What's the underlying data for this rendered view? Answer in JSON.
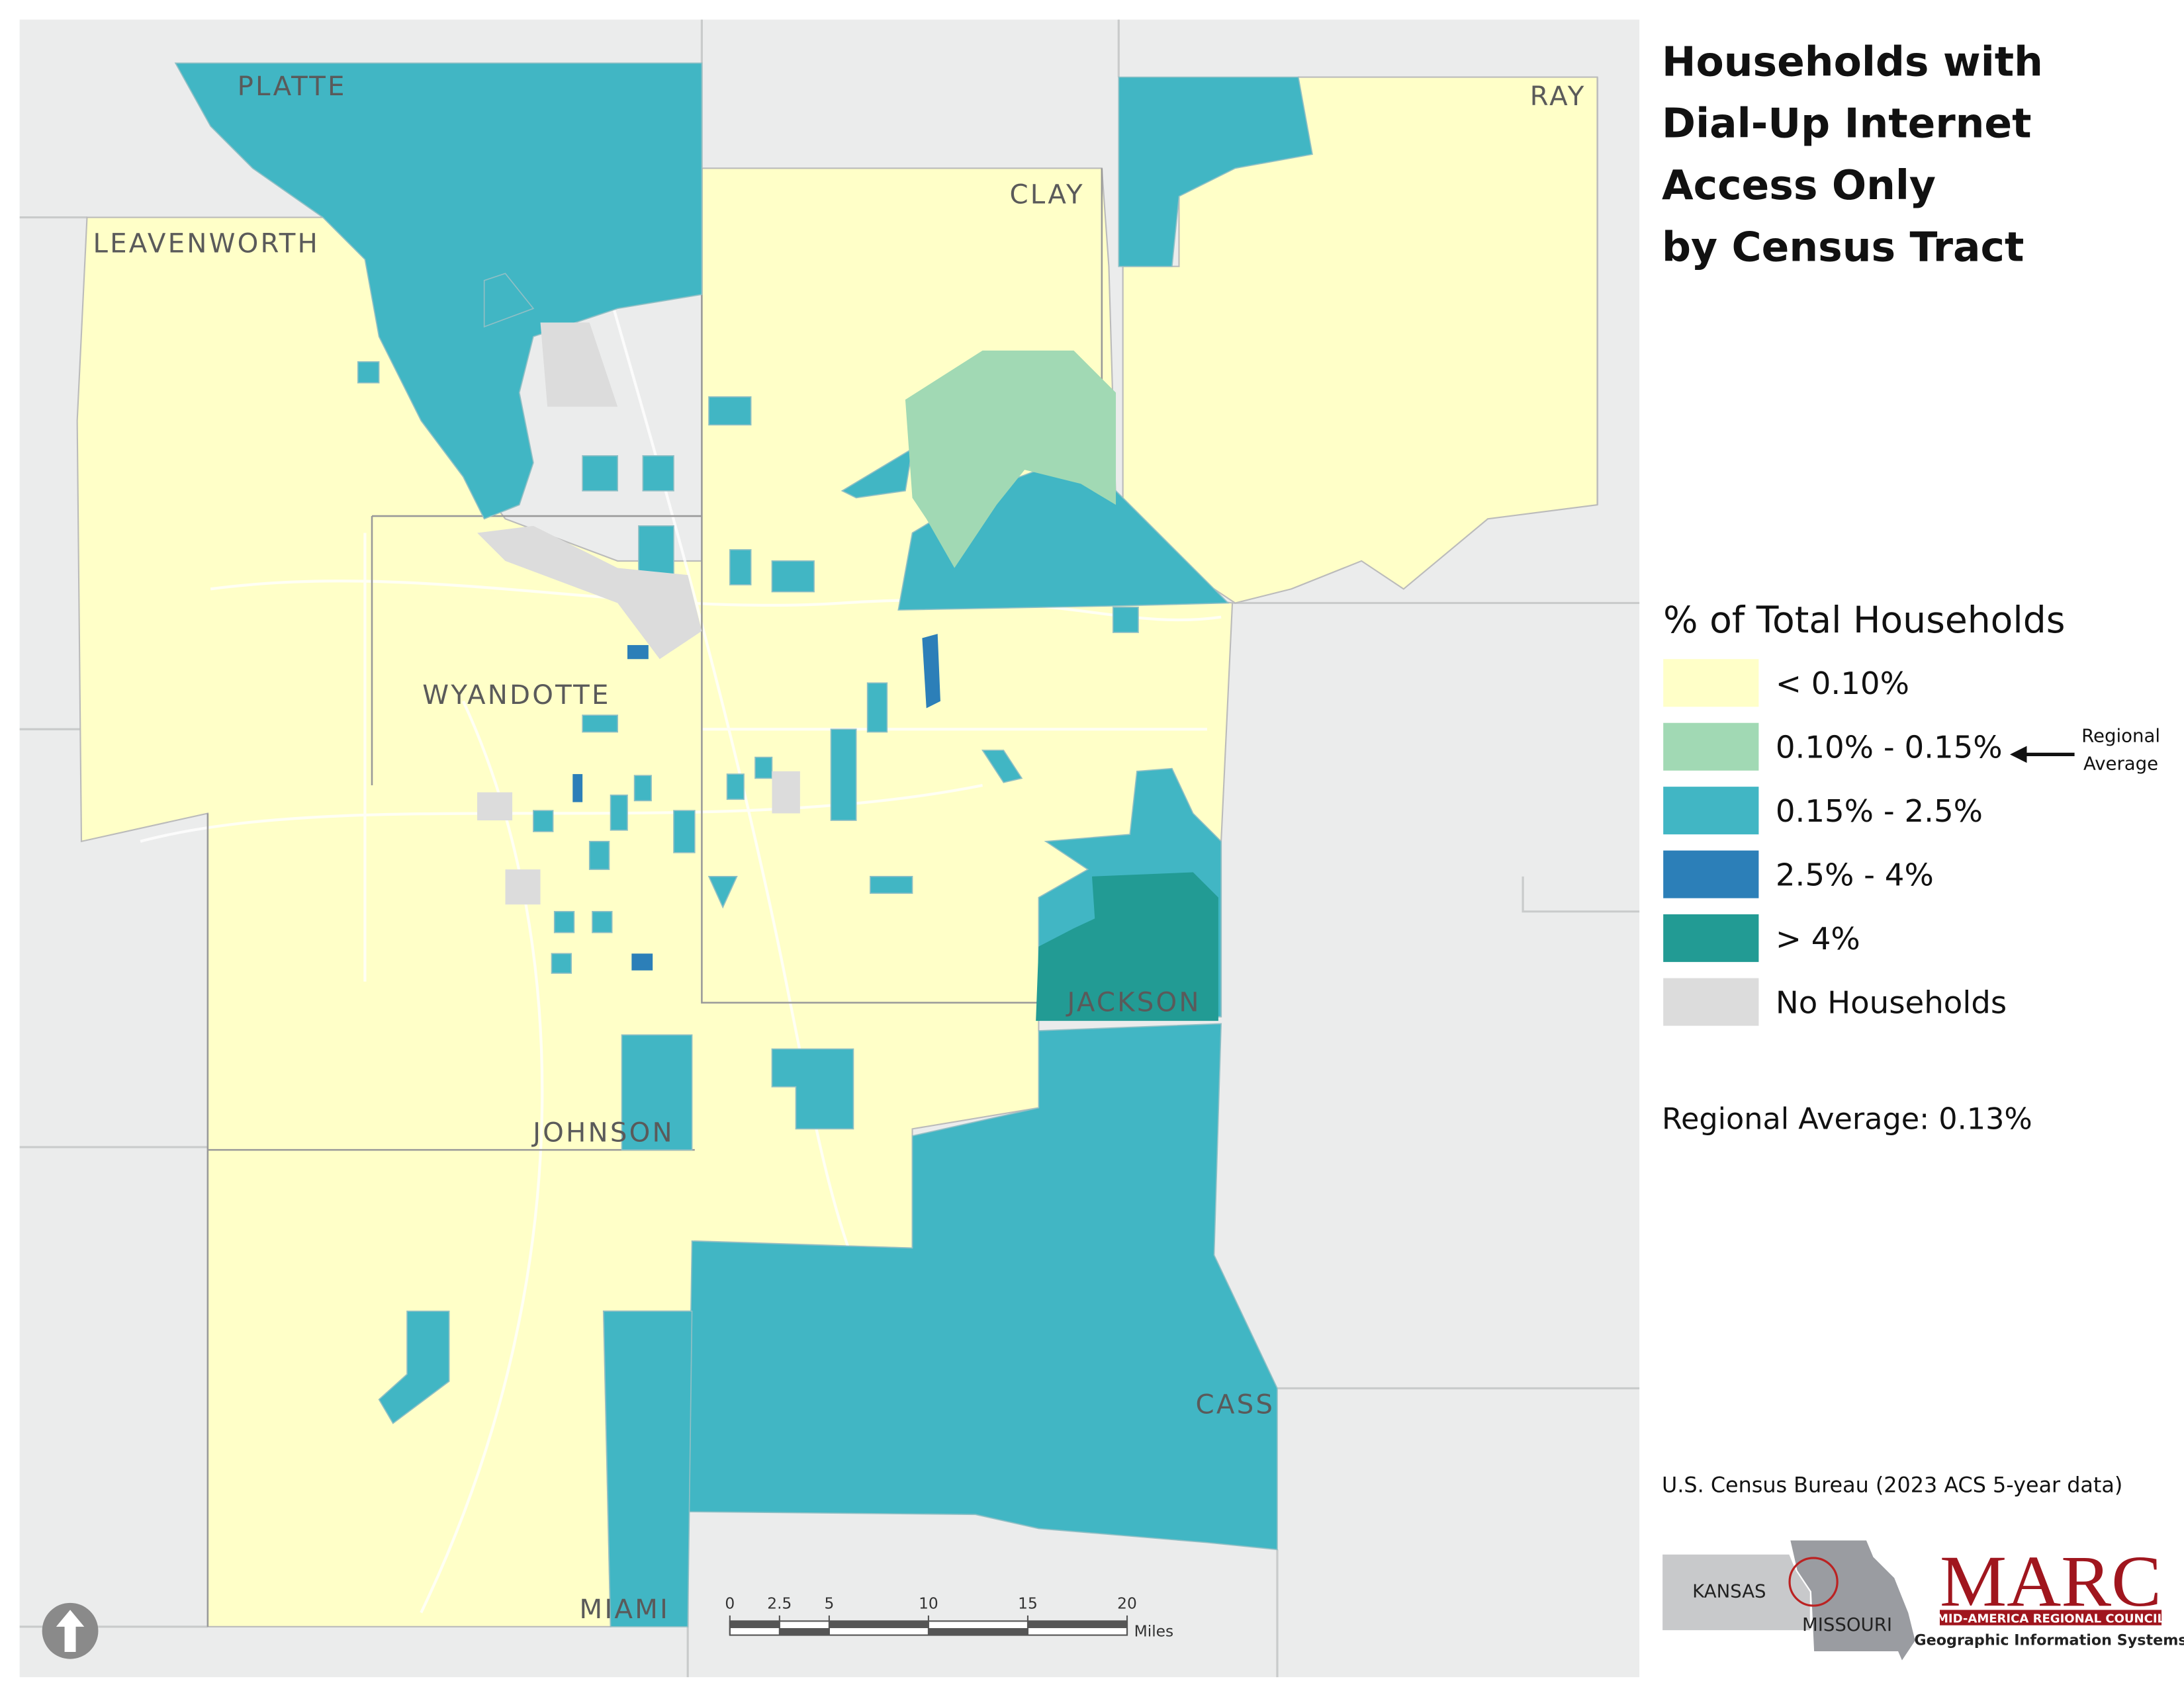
{
  "title_lines": [
    "Households with",
    "Dial-Up Internet",
    "Access Only",
    "by Census Tract"
  ],
  "legend": {
    "title": "% of Total Households",
    "items": [
      {
        "label": "< 0.10%",
        "color": "#ffffc8"
      },
      {
        "label": "0.10% - 0.15%",
        "color": "#a1d9b4"
      },
      {
        "label": "0.15% - 2.5%",
        "color": "#41b6c4"
      },
      {
        "label": "2.5% - 4%",
        "color": "#2c7fb8"
      },
      {
        "label": "> 4%",
        "color": "#229b94"
      },
      {
        "label": "No Households",
        "color": "#dcdcdc"
      }
    ],
    "annotation_lines": [
      "Regional",
      "Average"
    ]
  },
  "regional_average": "Regional Average: 0.13%",
  "counties": [
    "PLATTE",
    "LEAVENWORTH",
    "CLAY",
    "RAY",
    "WYANDOTTE",
    "JOHNSON",
    "JACKSON",
    "CASS",
    "MIAMI"
  ],
  "scale_bar": {
    "ticks": [
      0,
      2.5,
      5,
      10,
      15,
      20
    ],
    "unit": "Miles"
  },
  "source": "U.S. Census Bureau (2023 ACS 5-year data)",
  "locator": {
    "states": [
      "KANSAS",
      "MISSOURI"
    ]
  },
  "logo": {
    "name": "MARC",
    "full_name": "MID-AMERICA REGIONAL COUNCIL",
    "subtitle": "Geographic Information Systems"
  }
}
